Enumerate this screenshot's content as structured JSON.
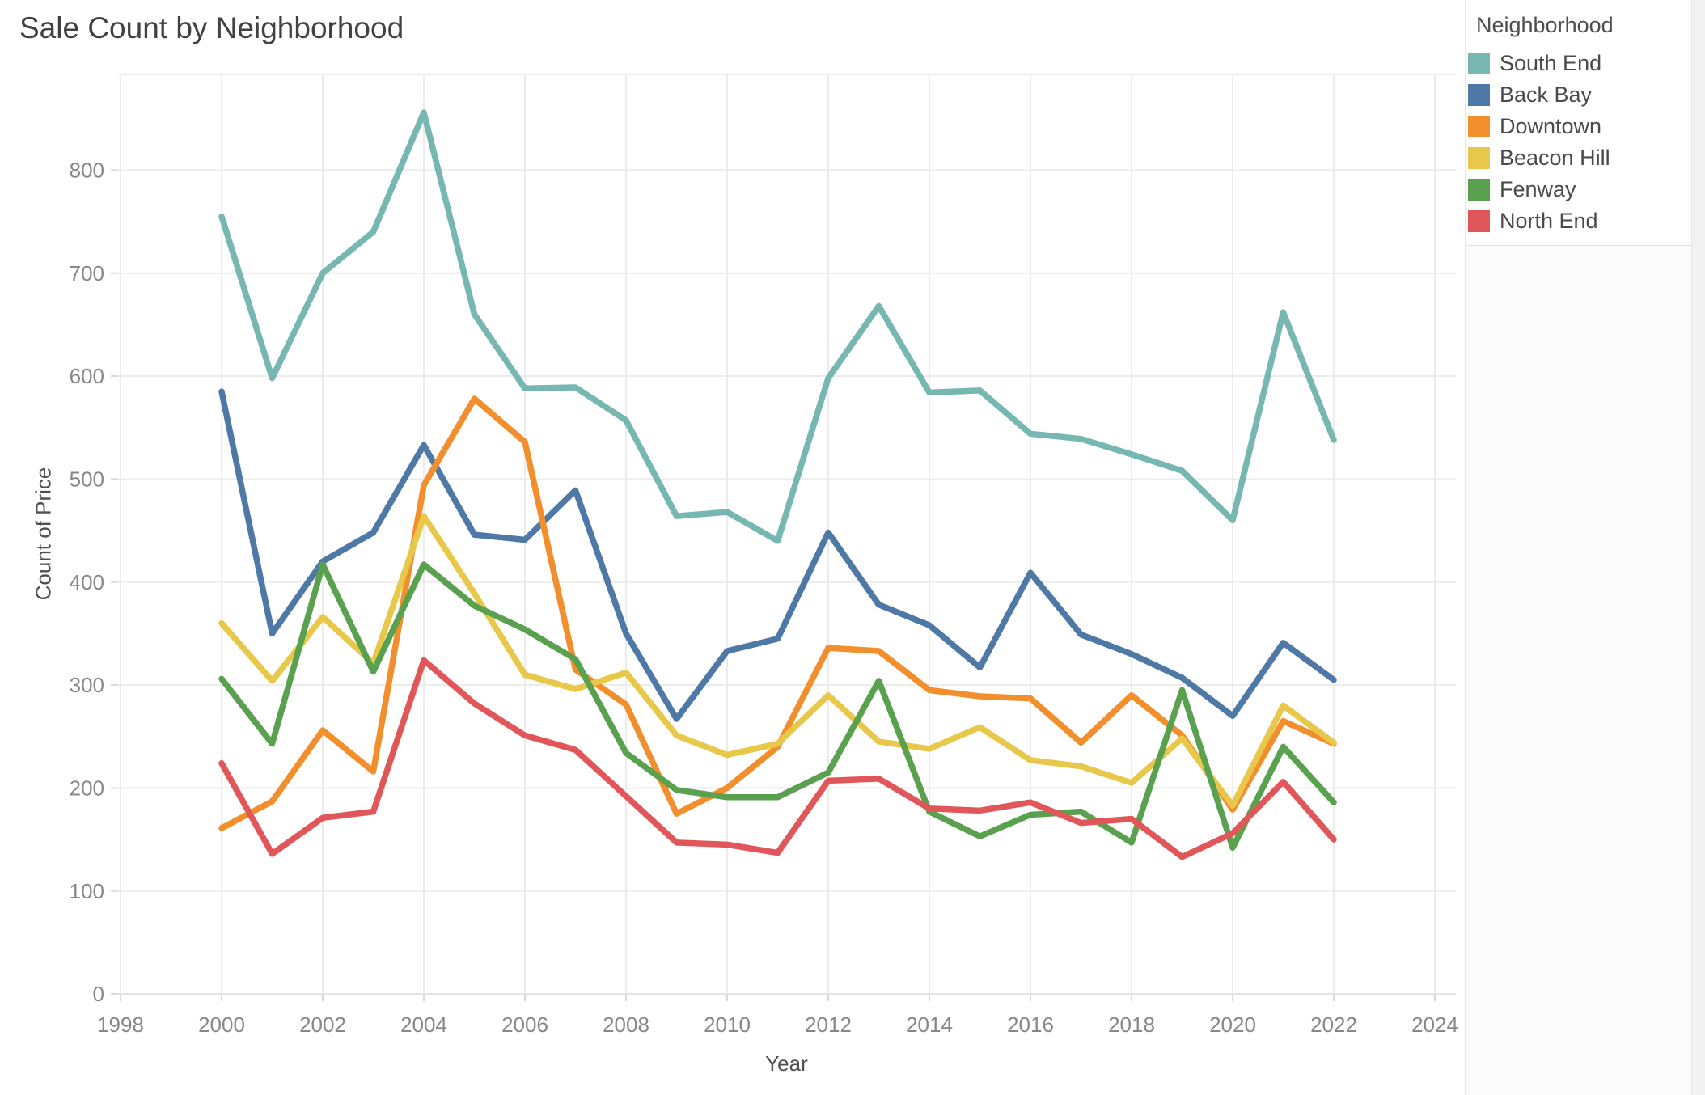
{
  "title": "Sale Count by Neighborhood",
  "legend": {
    "title": "Neighborhood",
    "items": [
      {
        "label": "South End",
        "color": "#76b7b2"
      },
      {
        "label": "Back Bay",
        "color": "#4e79a7"
      },
      {
        "label": "Downtown",
        "color": "#f28e2b"
      },
      {
        "label": "Beacon Hill",
        "color": "#e8c84a"
      },
      {
        "label": "Fenway",
        "color": "#59a14f"
      },
      {
        "label": "North End",
        "color": "#e15759"
      }
    ]
  },
  "chart_data": {
    "type": "line",
    "title": "Sale Count by Neighborhood",
    "xlabel": "Year",
    "ylabel": "Count of Price",
    "x": [
      2000,
      2001,
      2002,
      2003,
      2004,
      2005,
      2006,
      2007,
      2008,
      2009,
      2010,
      2011,
      2012,
      2013,
      2014,
      2015,
      2016,
      2017,
      2018,
      2019,
      2020,
      2021,
      2022
    ],
    "series": [
      {
        "name": "South End",
        "color": "#76b7b2",
        "values": [
          755,
          598,
          700,
          740,
          856,
          660,
          588,
          589,
          557,
          464,
          468,
          440,
          598,
          668,
          584,
          586,
          544,
          539,
          524,
          508,
          460,
          662,
          538
        ]
      },
      {
        "name": "Back Bay",
        "color": "#4e79a7",
        "values": [
          585,
          350,
          420,
          448,
          533,
          446,
          441,
          489,
          350,
          267,
          333,
          345,
          448,
          378,
          358,
          317,
          409,
          349,
          330,
          307,
          270,
          341,
          305
        ]
      },
      {
        "name": "Downtown",
        "color": "#f28e2b",
        "values": [
          161,
          187,
          256,
          216,
          494,
          578,
          536,
          315,
          281,
          175,
          200,
          240,
          336,
          333,
          295,
          289,
          287,
          244,
          290,
          251,
          179,
          265,
          243
        ]
      },
      {
        "name": "Beacon Hill",
        "color": "#e8c84a",
        "values": [
          360,
          304,
          366,
          321,
          464,
          389,
          310,
          296,
          312,
          251,
          232,
          243,
          290,
          245,
          238,
          259,
          227,
          221,
          205,
          248,
          183,
          280,
          244
        ]
      },
      {
        "name": "Fenway",
        "color": "#59a14f",
        "values": [
          306,
          243,
          417,
          313,
          417,
          377,
          354,
          325,
          234,
          198,
          191,
          191,
          215,
          304,
          177,
          153,
          174,
          177,
          147,
          295,
          142,
          240,
          186
        ]
      },
      {
        "name": "North End",
        "color": "#e15759",
        "values": [
          224,
          136,
          171,
          177,
          324,
          282,
          251,
          237,
          192,
          147,
          145,
          137,
          207,
          209,
          180,
          178,
          186,
          166,
          170,
          133,
          156,
          206,
          150
        ]
      }
    ],
    "x_ticks": [
      1998,
      2000,
      2002,
      2004,
      2006,
      2008,
      2010,
      2012,
      2014,
      2016,
      2018,
      2020,
      2022,
      2024
    ],
    "y_ticks": [
      0,
      100,
      200,
      300,
      400,
      500,
      600,
      700,
      800
    ],
    "xlim": [
      1997.9,
      2024.4
    ],
    "ylim": [
      0,
      870
    ],
    "grid": true,
    "legend_position": "right",
    "colors": {
      "gridline": "#ececec",
      "axis_line": "#e2e2e2",
      "tick_mark": "#d9d9d9",
      "tick_text": "#878787"
    }
  }
}
